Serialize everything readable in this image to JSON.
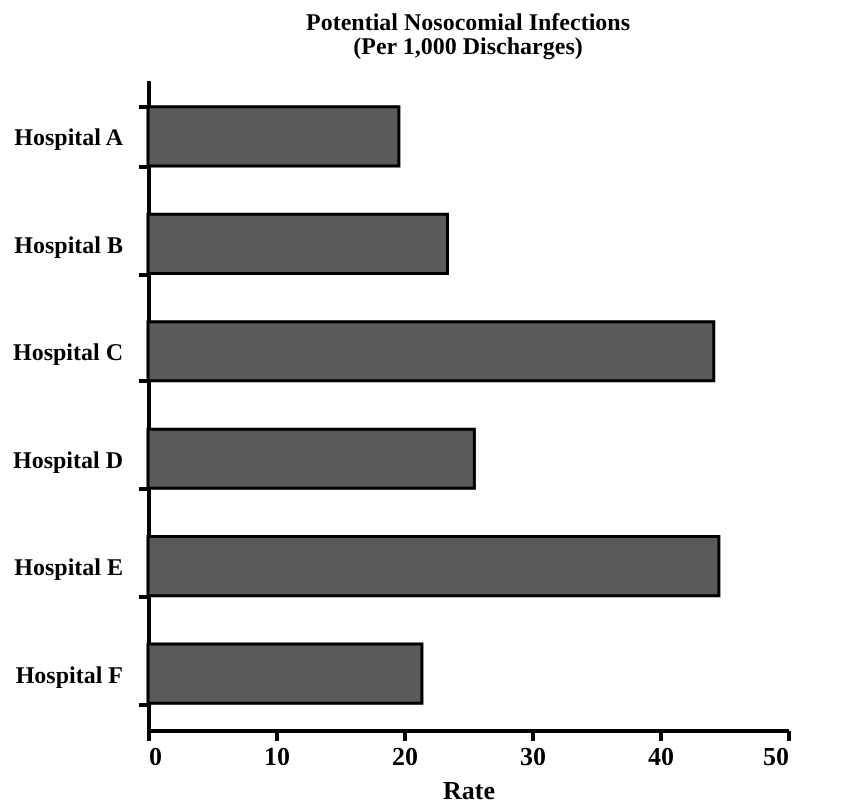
{
  "chart_data": {
    "type": "bar",
    "orientation": "horizontal",
    "title": "Potential Nosocomial Infections",
    "subtitle": "(Per 1,000 Discharges)",
    "xlabel": "Rate",
    "categories": [
      "Hospital A",
      "Hospital B",
      "Hospital C",
      "Hospital D",
      "Hospital E",
      "Hospital F"
    ],
    "values": [
      19.6,
      23.4,
      44.2,
      25.5,
      44.6,
      21.4
    ],
    "color": "#5a5a5a",
    "xlim": [
      0,
      50
    ],
    "xticks": [
      0,
      10,
      20,
      30,
      40,
      50
    ],
    "grid": false
  }
}
